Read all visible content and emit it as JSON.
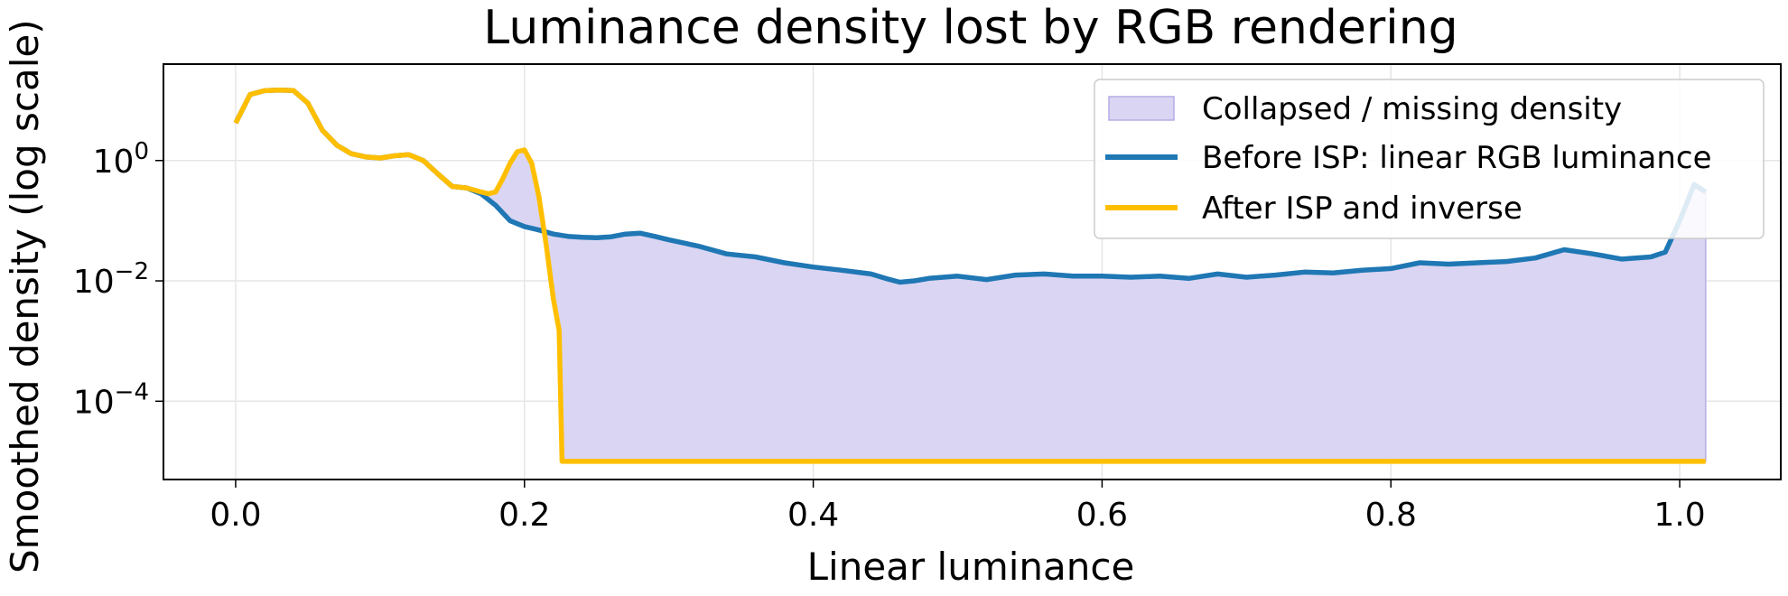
{
  "chart_data": {
    "type": "line",
    "title": "Luminance density lost by RGB rendering",
    "xlabel": "Linear luminance",
    "ylabel": "Smoothed density (log scale)",
    "xlim": [
      -0.05,
      1.07
    ],
    "ylim": [
      5e-06,
      40
    ],
    "yscale": "log",
    "grid": true,
    "legend_position": "top-right",
    "x_ticks": [
      {
        "value": 0.0,
        "label": "0.0"
      },
      {
        "value": 0.2,
        "label": "0.2"
      },
      {
        "value": 0.4,
        "label": "0.4"
      },
      {
        "value": 0.6,
        "label": "0.6"
      },
      {
        "value": 0.8,
        "label": "0.8"
      },
      {
        "value": 1.0,
        "label": "1.0"
      }
    ],
    "y_ticks": [
      {
        "value": 1,
        "base": "10",
        "exp": "0"
      },
      {
        "value": 0.01,
        "base": "10",
        "exp": "−2"
      },
      {
        "value": 0.0001,
        "base": "10",
        "exp": "−4"
      }
    ],
    "fill": {
      "name": "Collapsed / missing density",
      "color": "#dad5f2",
      "edge_color": "#b5ace6",
      "between": [
        "Before ISP: linear RGB luminance",
        "After ISP and inverse"
      ]
    },
    "series": [
      {
        "name": "Before ISP: linear RGB luminance",
        "color": "#1f77b4",
        "x": [
          0.0,
          0.01,
          0.02,
          0.03,
          0.04,
          0.05,
          0.06,
          0.07,
          0.08,
          0.09,
          0.1,
          0.11,
          0.12,
          0.13,
          0.14,
          0.15,
          0.16,
          0.17,
          0.18,
          0.19,
          0.2,
          0.21,
          0.22,
          0.23,
          0.24,
          0.25,
          0.26,
          0.27,
          0.28,
          0.29,
          0.3,
          0.32,
          0.34,
          0.36,
          0.38,
          0.4,
          0.42,
          0.44,
          0.45,
          0.46,
          0.47,
          0.48,
          0.5,
          0.52,
          0.54,
          0.56,
          0.58,
          0.6,
          0.62,
          0.64,
          0.66,
          0.68,
          0.7,
          0.72,
          0.74,
          0.76,
          0.78,
          0.8,
          0.82,
          0.84,
          0.86,
          0.88,
          0.9,
          0.92,
          0.94,
          0.96,
          0.98,
          0.99,
          1.0,
          1.01,
          1.018
        ],
        "y": [
          4.2,
          12.5,
          14.5,
          14.8,
          14.6,
          9.0,
          3.2,
          1.8,
          1.3,
          1.15,
          1.1,
          1.2,
          1.25,
          1.0,
          0.6,
          0.37,
          0.35,
          0.28,
          0.18,
          0.1,
          0.08,
          0.07,
          0.06,
          0.055,
          0.053,
          0.052,
          0.054,
          0.06,
          0.062,
          0.055,
          0.048,
          0.038,
          0.028,
          0.025,
          0.02,
          0.017,
          0.015,
          0.013,
          0.011,
          0.0095,
          0.01,
          0.011,
          0.012,
          0.0105,
          0.0125,
          0.013,
          0.012,
          0.012,
          0.0115,
          0.012,
          0.011,
          0.013,
          0.0115,
          0.0125,
          0.014,
          0.0135,
          0.015,
          0.016,
          0.02,
          0.019,
          0.02,
          0.021,
          0.024,
          0.033,
          0.028,
          0.023,
          0.025,
          0.03,
          0.1,
          0.4,
          0.3
        ]
      },
      {
        "name": "After ISP and inverse",
        "color": "#ffbf00",
        "x": [
          0.0,
          0.01,
          0.02,
          0.03,
          0.04,
          0.05,
          0.06,
          0.07,
          0.08,
          0.09,
          0.1,
          0.11,
          0.12,
          0.13,
          0.14,
          0.15,
          0.16,
          0.17,
          0.175,
          0.18,
          0.185,
          0.19,
          0.195,
          0.2,
          0.205,
          0.21,
          0.215,
          0.22,
          0.224,
          0.226,
          0.23,
          0.3,
          0.4,
          0.5,
          0.6,
          0.7,
          0.8,
          0.9,
          1.0,
          1.018
        ],
        "y": [
          4.2,
          12.5,
          14.5,
          14.8,
          14.6,
          9.0,
          3.2,
          1.8,
          1.3,
          1.15,
          1.1,
          1.2,
          1.25,
          1.0,
          0.6,
          0.37,
          0.35,
          0.3,
          0.28,
          0.3,
          0.5,
          0.9,
          1.4,
          1.5,
          0.9,
          0.25,
          0.04,
          0.005,
          0.0015,
          1e-05,
          1e-05,
          1e-05,
          1e-05,
          1e-05,
          1e-05,
          1e-05,
          1e-05,
          1e-05,
          1e-05,
          1e-05
        ]
      }
    ]
  }
}
